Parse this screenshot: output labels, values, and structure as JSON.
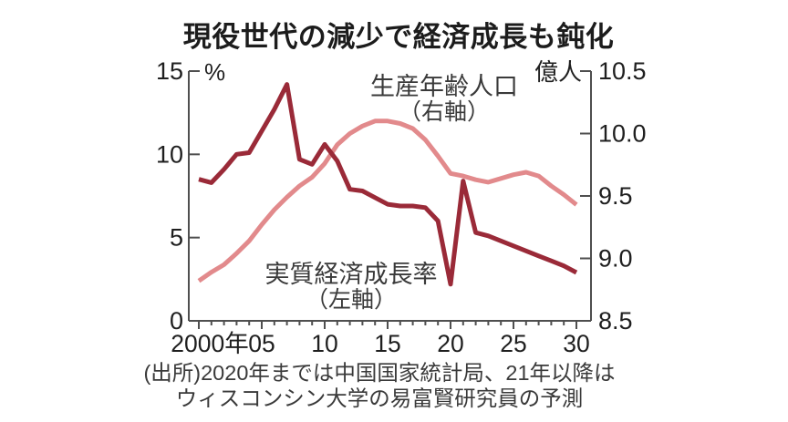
{
  "title": "現役世代の減少で経済成長も鈍化",
  "source": {
    "line1": "(出所)2020年までは中国国家統計局、21年以降は",
    "line2": "ウィスコンシン大学の易富賢研究員の予測"
  },
  "colors": {
    "background": "#ffffff",
    "axis": "#4f4f4f",
    "tick_text": "#1f1f1f",
    "growth_line": "#9a2a38",
    "population_line": "#e28a8c"
  },
  "chart_data": {
    "type": "line",
    "x_years": [
      2000,
      2001,
      2002,
      2003,
      2004,
      2005,
      2006,
      2007,
      2008,
      2009,
      2010,
      2011,
      2012,
      2013,
      2014,
      2015,
      2016,
      2017,
      2018,
      2019,
      2020,
      2021,
      2022,
      2023,
      2024,
      2025,
      2026,
      2027,
      2028,
      2029,
      2030
    ],
    "x_axis": {
      "tick_years": [
        2000,
        2005,
        2010,
        2015,
        2020,
        2025,
        2030
      ],
      "tick_labels": [
        "2000年",
        "05",
        "10",
        "15",
        "20",
        "25",
        "30"
      ]
    },
    "left_axis": {
      "unit": "%",
      "min": 0,
      "max": 15,
      "ticks": [
        {
          "value": 15,
          "label": "15"
        },
        {
          "value": 10,
          "label": "10"
        },
        {
          "value": 5,
          "label": "5"
        },
        {
          "value": 0,
          "label": "0"
        }
      ]
    },
    "right_axis": {
      "unit": "億人",
      "min": 8.5,
      "max": 10.5,
      "ticks": [
        {
          "value": 10.5,
          "label": "10.5"
        },
        {
          "value": 10.0,
          "label": "10.0"
        },
        {
          "value": 9.5,
          "label": "9.5"
        },
        {
          "value": 9.0,
          "label": "9.0"
        },
        {
          "value": 8.5,
          "label": "8.5"
        }
      ]
    },
    "grid": false,
    "legend_position": "annotations-on-plot",
    "series": [
      {
        "name": "生産年齢人口",
        "axis_note": "（右軸）",
        "axis": "right",
        "color": "#e28a8c",
        "values": [
          8.82,
          8.89,
          8.95,
          9.04,
          9.14,
          9.27,
          9.39,
          9.49,
          9.58,
          9.65,
          9.76,
          9.91,
          10.0,
          10.06,
          10.1,
          10.1,
          10.08,
          10.04,
          9.95,
          9.82,
          9.68,
          9.66,
          9.63,
          9.61,
          9.64,
          9.67,
          9.69,
          9.66,
          9.58,
          9.51,
          9.43
        ]
      },
      {
        "name": "実質経済成長率",
        "axis_note": "（左軸）",
        "axis": "left",
        "color": "#9a2a38",
        "values": [
          8.5,
          8.3,
          9.1,
          10.0,
          10.1,
          11.4,
          12.7,
          14.2,
          9.7,
          9.4,
          10.6,
          9.6,
          7.9,
          7.8,
          7.4,
          7.0,
          6.9,
          6.9,
          6.8,
          6.0,
          2.2,
          8.4,
          5.3,
          5.1,
          4.8,
          4.5,
          4.2,
          3.9,
          3.6,
          3.3,
          2.9
        ]
      }
    ]
  }
}
